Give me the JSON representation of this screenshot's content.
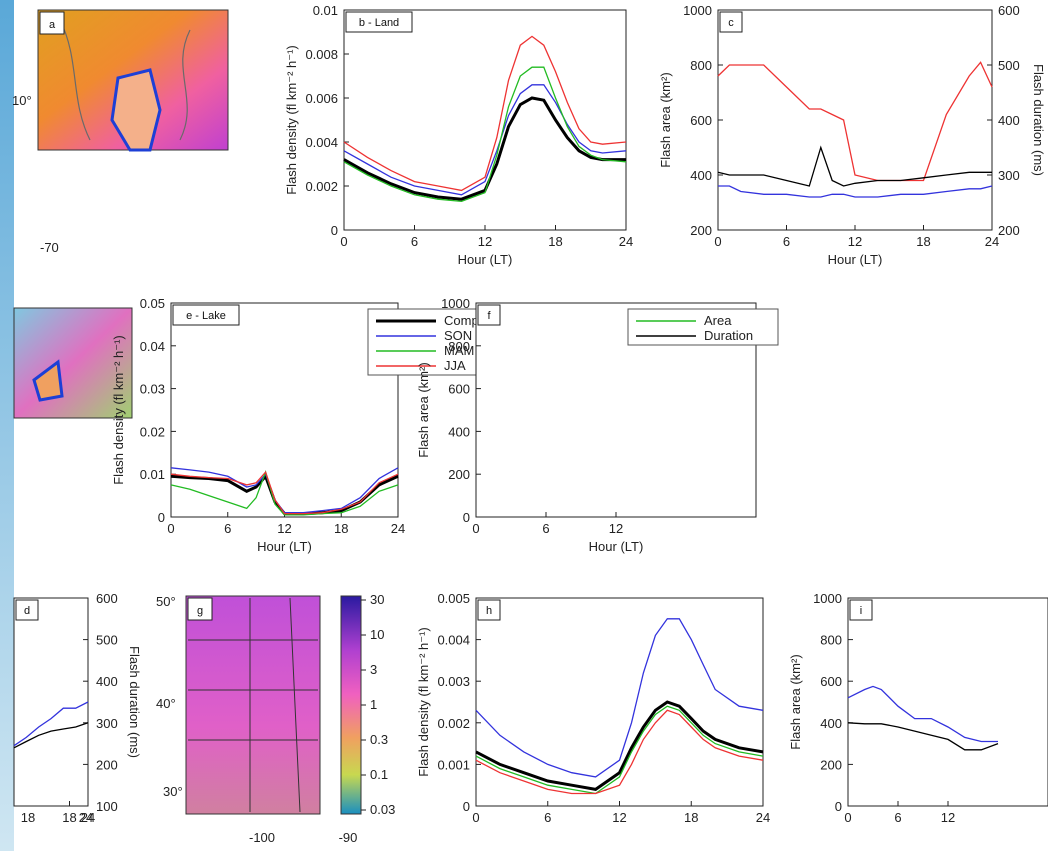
{
  "figure": {
    "colors": {
      "composite": "#000000",
      "son": "#3333dd",
      "mam": "#22bb22",
      "jja": "#ee3333",
      "area_axis": "#ee3333",
      "area_axis_i": "#2222cc"
    },
    "colorbar": {
      "ticks": [
        "30",
        "10",
        "3",
        "1",
        "0.3",
        "0.1",
        "0.03"
      ]
    }
  },
  "chart_data": [
    {
      "id": "a",
      "panel_label": "a",
      "type": "heatmap",
      "lat_ticks": [
        "10°"
      ],
      "lon_ticks": [
        "-70"
      ]
    },
    {
      "id": "b",
      "panel_label": "b - Land",
      "type": "line",
      "xlabel": "Hour (LT)",
      "ylabel": "Flash density (fl km⁻² h⁻¹)",
      "xlim": [
        0,
        24
      ],
      "ylim": [
        0,
        0.01
      ],
      "x_ticks": [
        "0",
        "6",
        "12",
        "18",
        "24"
      ],
      "y_ticks": [
        "0",
        "0.002",
        "0.004",
        "0.006",
        "0.008",
        "0.01"
      ],
      "x": [
        0,
        2,
        4,
        6,
        8,
        10,
        12,
        13,
        14,
        15,
        16,
        17,
        18,
        19,
        20,
        21,
        22,
        24
      ],
      "series": [
        {
          "key": "composite",
          "values": [
            0.0032,
            0.0026,
            0.0021,
            0.0017,
            0.0015,
            0.0014,
            0.0018,
            0.003,
            0.0047,
            0.0057,
            0.006,
            0.0059,
            0.005,
            0.0042,
            0.0036,
            0.0033,
            0.0032,
            0.0032
          ]
        },
        {
          "key": "son",
          "values": [
            0.0036,
            0.003,
            0.0024,
            0.002,
            0.0018,
            0.0016,
            0.0022,
            0.0036,
            0.0052,
            0.0062,
            0.0066,
            0.0066,
            0.0058,
            0.0048,
            0.004,
            0.0036,
            0.0035,
            0.0036
          ]
        },
        {
          "key": "mam",
          "values": [
            0.0031,
            0.0025,
            0.002,
            0.0016,
            0.0014,
            0.0013,
            0.0017,
            0.0034,
            0.0056,
            0.007,
            0.0074,
            0.0074,
            0.006,
            0.0047,
            0.0038,
            0.0034,
            0.0032,
            0.0031
          ]
        },
        {
          "key": "jja",
          "values": [
            0.004,
            0.0033,
            0.0027,
            0.0022,
            0.002,
            0.0018,
            0.0024,
            0.0042,
            0.0068,
            0.0084,
            0.0088,
            0.0084,
            0.0072,
            0.0058,
            0.0046,
            0.004,
            0.0039,
            0.004
          ]
        }
      ]
    },
    {
      "id": "c",
      "panel_label": "c",
      "type": "line",
      "xlabel": "Hour (LT)",
      "ylabel": "Flash area (km²)",
      "y2label": "Flash duration (ms)",
      "xlim": [
        0,
        24
      ],
      "ylim": [
        200,
        1000
      ],
      "y2lim": [
        200,
        600
      ],
      "x_ticks": [
        "0",
        "6",
        "12",
        "18",
        "24"
      ],
      "y_ticks": [
        "200",
        "400",
        "600",
        "800",
        "1000"
      ],
      "y2_ticks": [
        "200",
        "300",
        "400",
        "500",
        "600"
      ],
      "x": [
        0,
        1,
        2,
        4,
        6,
        8,
        9,
        10,
        11,
        12,
        14,
        16,
        18,
        20,
        22,
        23,
        24
      ],
      "series": [
        {
          "key": "jja",
          "axis": "left",
          "values": [
            760,
            800,
            800,
            800,
            720,
            640,
            640,
            620,
            600,
            400,
            380,
            380,
            380,
            620,
            760,
            810,
            720
          ]
        },
        {
          "key": "son",
          "axis": "left",
          "values": [
            360,
            360,
            340,
            330,
            330,
            320,
            320,
            330,
            330,
            320,
            320,
            330,
            330,
            340,
            350,
            350,
            360
          ]
        },
        {
          "key": "composite",
          "axis": "right",
          "values": [
            305,
            300,
            300,
            300,
            290,
            280,
            350,
            290,
            280,
            285,
            290,
            290,
            295,
            300,
            305,
            305,
            305
          ]
        }
      ]
    },
    {
      "id": "e",
      "panel_label": "e - Lake",
      "type": "line",
      "xlabel": "Hour (LT)",
      "ylabel": "Flash density (fl km⁻² h⁻¹)",
      "xlim": [
        0,
        24
      ],
      "ylim": [
        0,
        0.05
      ],
      "x_ticks": [
        "0",
        "6",
        "12",
        "18",
        "24"
      ],
      "y_ticks": [
        "0",
        "0.01",
        "0.02",
        "0.03",
        "0.04",
        "0.05"
      ],
      "legend": [
        "Composite",
        "SON",
        "MAM",
        "JJA"
      ],
      "x": [
        0,
        2,
        4,
        6,
        8,
        9,
        10,
        11,
        12,
        14,
        16,
        18,
        20,
        22,
        24
      ],
      "series": [
        {
          "key": "composite",
          "values": [
            0.0095,
            0.0092,
            0.009,
            0.0085,
            0.006,
            0.007,
            0.0095,
            0.0035,
            0.0008,
            0.0008,
            0.001,
            0.0015,
            0.0035,
            0.0075,
            0.0095
          ]
        },
        {
          "key": "son",
          "values": [
            0.0115,
            0.011,
            0.0105,
            0.0095,
            0.007,
            0.0075,
            0.01,
            0.004,
            0.001,
            0.001,
            0.0015,
            0.002,
            0.0045,
            0.009,
            0.0115
          ]
        },
        {
          "key": "mam",
          "values": [
            0.0075,
            0.0065,
            0.005,
            0.0035,
            0.002,
            0.0045,
            0.0105,
            0.003,
            0.0005,
            0.0005,
            0.0008,
            0.001,
            0.0025,
            0.006,
            0.0075
          ]
        },
        {
          "key": "jja",
          "values": [
            0.01,
            0.0095,
            0.0092,
            0.009,
            0.0075,
            0.008,
            0.0105,
            0.004,
            0.0008,
            0.0008,
            0.001,
            0.0018,
            0.0035,
            0.008,
            0.01
          ]
        }
      ]
    },
    {
      "id": "f",
      "panel_label": "f",
      "type": "line",
      "xlabel": "Hour (LT)",
      "ylabel": "Flash area (km²)",
      "xlim": [
        0,
        24
      ],
      "ylim": [
        0,
        1000
      ],
      "x_ticks": [
        "0",
        "6",
        "12"
      ],
      "y_ticks": [
        "0",
        "200",
        "400",
        "600",
        "800",
        "1000"
      ],
      "legend": [
        "Area",
        "Duration"
      ]
    },
    {
      "id": "g",
      "panel_label": "g",
      "type": "heatmap",
      "lat_ticks": [
        "30°",
        "40°",
        "50°"
      ],
      "lon_ticks": [
        "-100",
        "-90"
      ],
      "colorbar_ticks": [
        "30",
        "10",
        "3",
        "1",
        "0.3",
        "0.1",
        "0.03"
      ]
    },
    {
      "id": "h",
      "panel_label": "h",
      "type": "line",
      "ylabel": "Flash density (fl km⁻² h⁻¹)",
      "xlim": [
        0,
        24
      ],
      "ylim": [
        0,
        0.005
      ],
      "x_ticks": [
        "0",
        "6",
        "12",
        "18",
        "24"
      ],
      "y_ticks": [
        "0",
        "0.001",
        "0.002",
        "0.003",
        "0.004",
        "0.005"
      ],
      "x": [
        0,
        2,
        4,
        6,
        8,
        10,
        12,
        13,
        14,
        15,
        16,
        17,
        18,
        19,
        20,
        22,
        24
      ],
      "series": [
        {
          "key": "son",
          "values": [
            0.0023,
            0.0017,
            0.0013,
            0.001,
            0.0008,
            0.0007,
            0.0011,
            0.002,
            0.0032,
            0.0041,
            0.0045,
            0.0045,
            0.004,
            0.0034,
            0.0028,
            0.0024,
            0.0023
          ]
        },
        {
          "key": "composite",
          "values": [
            0.0013,
            0.001,
            0.0008,
            0.0006,
            0.0005,
            0.0004,
            0.0008,
            0.0014,
            0.0019,
            0.0023,
            0.0025,
            0.0024,
            0.0021,
            0.0018,
            0.0016,
            0.0014,
            0.0013
          ]
        },
        {
          "key": "mam",
          "values": [
            0.0012,
            0.0009,
            0.0007,
            0.0005,
            0.0004,
            0.0003,
            0.0007,
            0.0013,
            0.0018,
            0.0022,
            0.0024,
            0.0023,
            0.002,
            0.0017,
            0.0015,
            0.0013,
            0.0012
          ]
        },
        {
          "key": "jja",
          "values": [
            0.0011,
            0.0008,
            0.0006,
            0.0004,
            0.0003,
            0.0003,
            0.0005,
            0.001,
            0.0016,
            0.002,
            0.0023,
            0.0022,
            0.0019,
            0.0016,
            0.0014,
            0.0012,
            0.0011
          ]
        }
      ]
    },
    {
      "id": "i",
      "panel_label": "i",
      "type": "line",
      "ylabel": "Flash area (km²)",
      "xlim": [
        0,
        24
      ],
      "ylim": [
        0,
        1000
      ],
      "x_ticks": [
        "0",
        "6",
        "12"
      ],
      "y_ticks": [
        "0",
        "200",
        "400",
        "600",
        "800",
        "1000"
      ],
      "x": [
        0,
        2,
        3,
        4,
        6,
        8,
        10,
        12,
        14,
        16,
        18
      ],
      "series": [
        {
          "key": "son",
          "values": [
            520,
            560,
            575,
            560,
            480,
            420,
            420,
            380,
            330,
            310,
            310
          ]
        },
        {
          "key": "composite",
          "values": [
            400,
            395,
            395,
            395,
            380,
            360,
            340,
            320,
            270,
            270,
            300
          ]
        }
      ]
    },
    {
      "id": "d",
      "panel_label": "d",
      "type": "line",
      "ylabel": "Flash duration (ms)",
      "xlim": [
        0,
        24
      ],
      "ylim": [
        100,
        600
      ],
      "x_ticks": [
        "18",
        "24"
      ],
      "y_ticks": [
        "100",
        "200",
        "300",
        "400",
        "500",
        "600"
      ],
      "x": [
        12,
        14,
        16,
        18,
        20,
        22,
        24
      ],
      "series": [
        {
          "key": "son",
          "values": [
            245,
            265,
            290,
            310,
            335,
            335,
            350
          ]
        },
        {
          "key": "composite",
          "values": [
            240,
            255,
            270,
            280,
            285,
            290,
            300
          ]
        }
      ]
    }
  ]
}
